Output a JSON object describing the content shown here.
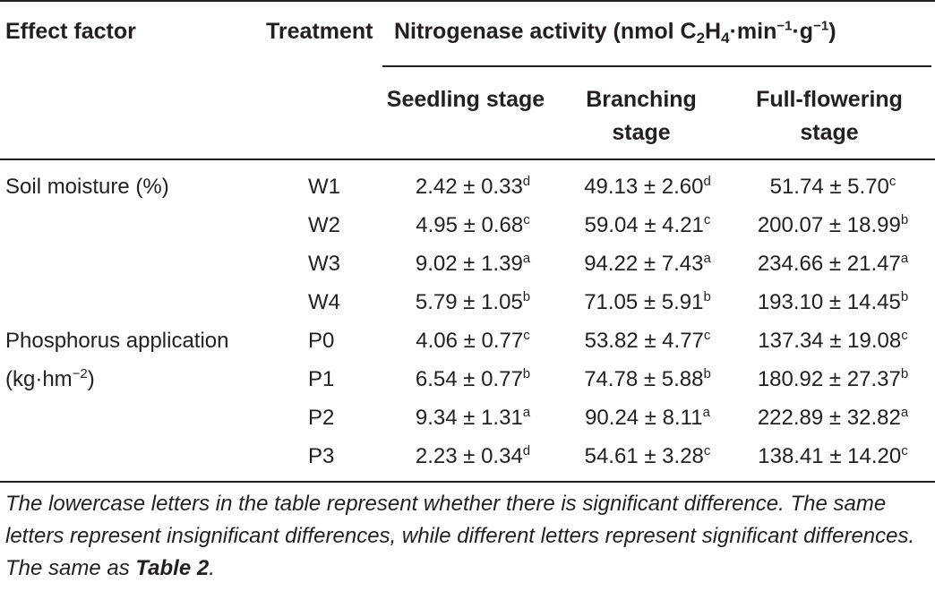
{
  "header": {
    "effect_factor": "Effect factor",
    "treatment": "Treatment",
    "activity": {
      "lead": "Nitrogenase activity (nmol C",
      "sub1": "2",
      "mid1": "H",
      "sub2": "4",
      "mid2": "·min",
      "sup1": "−1",
      "mid3": "·g",
      "sup2": "−1",
      "tail": ")"
    },
    "stages": [
      "Seedling stage",
      "Branching stage",
      "Full-flowering stage"
    ]
  },
  "groups": {
    "soil_label": "Soil moisture (%)",
    "phos_label_line1": "Phosphorus application",
    "phos_unit_base": "(kg·hm",
    "phos_unit_sup": "−2",
    "phos_unit_tail": ")"
  },
  "rows": [
    {
      "treatment": "W1",
      "seedling": "2.42 ± 0.33",
      "seedling_sig": "d",
      "branching": "49.13 ± 2.60",
      "branching_sig": "d",
      "flowering": "51.74 ± 5.70",
      "flowering_sig": "c"
    },
    {
      "treatment": "W2",
      "seedling": "4.95 ± 0.68",
      "seedling_sig": "c",
      "branching": "59.04 ± 4.21",
      "branching_sig": "c",
      "flowering": "200.07 ± 18.99",
      "flowering_sig": "b"
    },
    {
      "treatment": "W3",
      "seedling": "9.02 ± 1.39",
      "seedling_sig": "a",
      "branching": "94.22 ± 7.43",
      "branching_sig": "a",
      "flowering": "234.66 ± 21.47",
      "flowering_sig": "a"
    },
    {
      "treatment": "W4",
      "seedling": "5.79 ± 1.05",
      "seedling_sig": "b",
      "branching": "71.05 ± 5.91",
      "branching_sig": "b",
      "flowering": "193.10 ± 14.45",
      "flowering_sig": "b"
    },
    {
      "treatment": "P0",
      "seedling": "4.06 ± 0.77",
      "seedling_sig": "c",
      "branching": "53.82 ± 4.77",
      "branching_sig": "c",
      "flowering": "137.34 ± 19.08",
      "flowering_sig": "c"
    },
    {
      "treatment": "P1",
      "seedling": "6.54 ± 0.77",
      "seedling_sig": "b",
      "branching": "74.78 ± 5.88",
      "branching_sig": "b",
      "flowering": "180.92 ± 27.37",
      "flowering_sig": "b"
    },
    {
      "treatment": "P2",
      "seedling": "9.34 ± 1.31",
      "seedling_sig": "a",
      "branching": "90.24 ± 8.11",
      "branching_sig": "a",
      "flowering": "222.89 ± 32.82",
      "flowering_sig": "a"
    },
    {
      "treatment": "P3",
      "seedling": "2.23 ± 0.34",
      "seedling_sig": "d",
      "branching": "54.61 ± 3.28",
      "branching_sig": "c",
      "flowering": "138.41 ± 14.20",
      "flowering_sig": "c"
    }
  ],
  "footnote": {
    "text": "The lowercase letters in the table represent whether there is significant difference. The same letters represent insignificant differences, while different letters represent significant differences. The same as ",
    "ref": "Table 2",
    "end": "."
  }
}
